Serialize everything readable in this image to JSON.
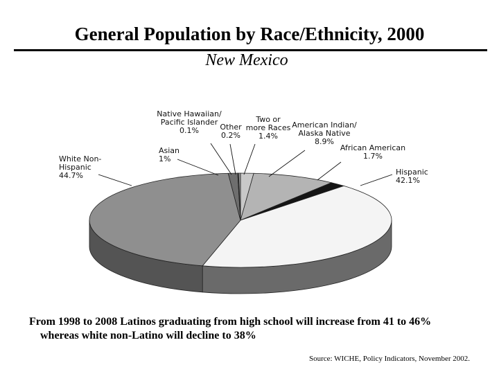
{
  "slide": {
    "title": "General Population by Race/Ethnicity, 2000",
    "subtitle": "New Mexico",
    "note_line1": "From 1998 to 2008 Latinos graduating from high school will increase from 41 to 46%",
    "note_line2": "whereas white non-Latino will decline to 38%",
    "source": "Source:  WICHE, Policy Indicators, November 2002."
  },
  "chart_data": {
    "type": "pie",
    "title": "General Population by Race/Ethnicity, 2000",
    "subtitle": "New Mexico",
    "slices": [
      {
        "name": "Two or more Races",
        "value": 1.4,
        "label_lines": [
          "Two or",
          "more Races",
          "1.4%"
        ],
        "color": "#c8c8c8",
        "side": "#8c8c8c"
      },
      {
        "name": "American Indian/Alaska Native",
        "value": 8.9,
        "label_lines": [
          "American Indian/",
          "Alaska Native",
          "8.9%"
        ],
        "color": "#b4b4b4",
        "side": "#7e7e7e"
      },
      {
        "name": "African American",
        "value": 1.7,
        "label_lines": [
          "African American",
          "1.7%"
        ],
        "color": "#151515",
        "side": "#080808"
      },
      {
        "name": "Hispanic",
        "value": 42.1,
        "label_lines": [
          "Hispanic",
          "42.1%"
        ],
        "color": "#f4f4f4",
        "side": "#6a6a6a"
      },
      {
        "name": "White Non-Hispanic",
        "value": 44.7,
        "label_lines": [
          "White Non-",
          "Hispanic",
          "44.7%"
        ],
        "color": "#8f8f8f",
        "side": "#545454"
      },
      {
        "name": "Asian",
        "value": 1.0,
        "label_lines": [
          "Asian",
          "1%"
        ],
        "color": "#6e6e6e",
        "side": "#404040"
      },
      {
        "name": "Native Hawaiian/Pacific Islander",
        "value": 0.1,
        "label_lines": [
          "Native Hawaiian/",
          "Pacific Islander",
          "0.1%"
        ],
        "color": "#555555",
        "side": "#333333"
      },
      {
        "name": "Other",
        "value": 0.2,
        "label_lines": [
          "Other",
          "0.2%"
        ],
        "color": "#9a9a9a",
        "side": "#5a5a5a"
      }
    ]
  }
}
